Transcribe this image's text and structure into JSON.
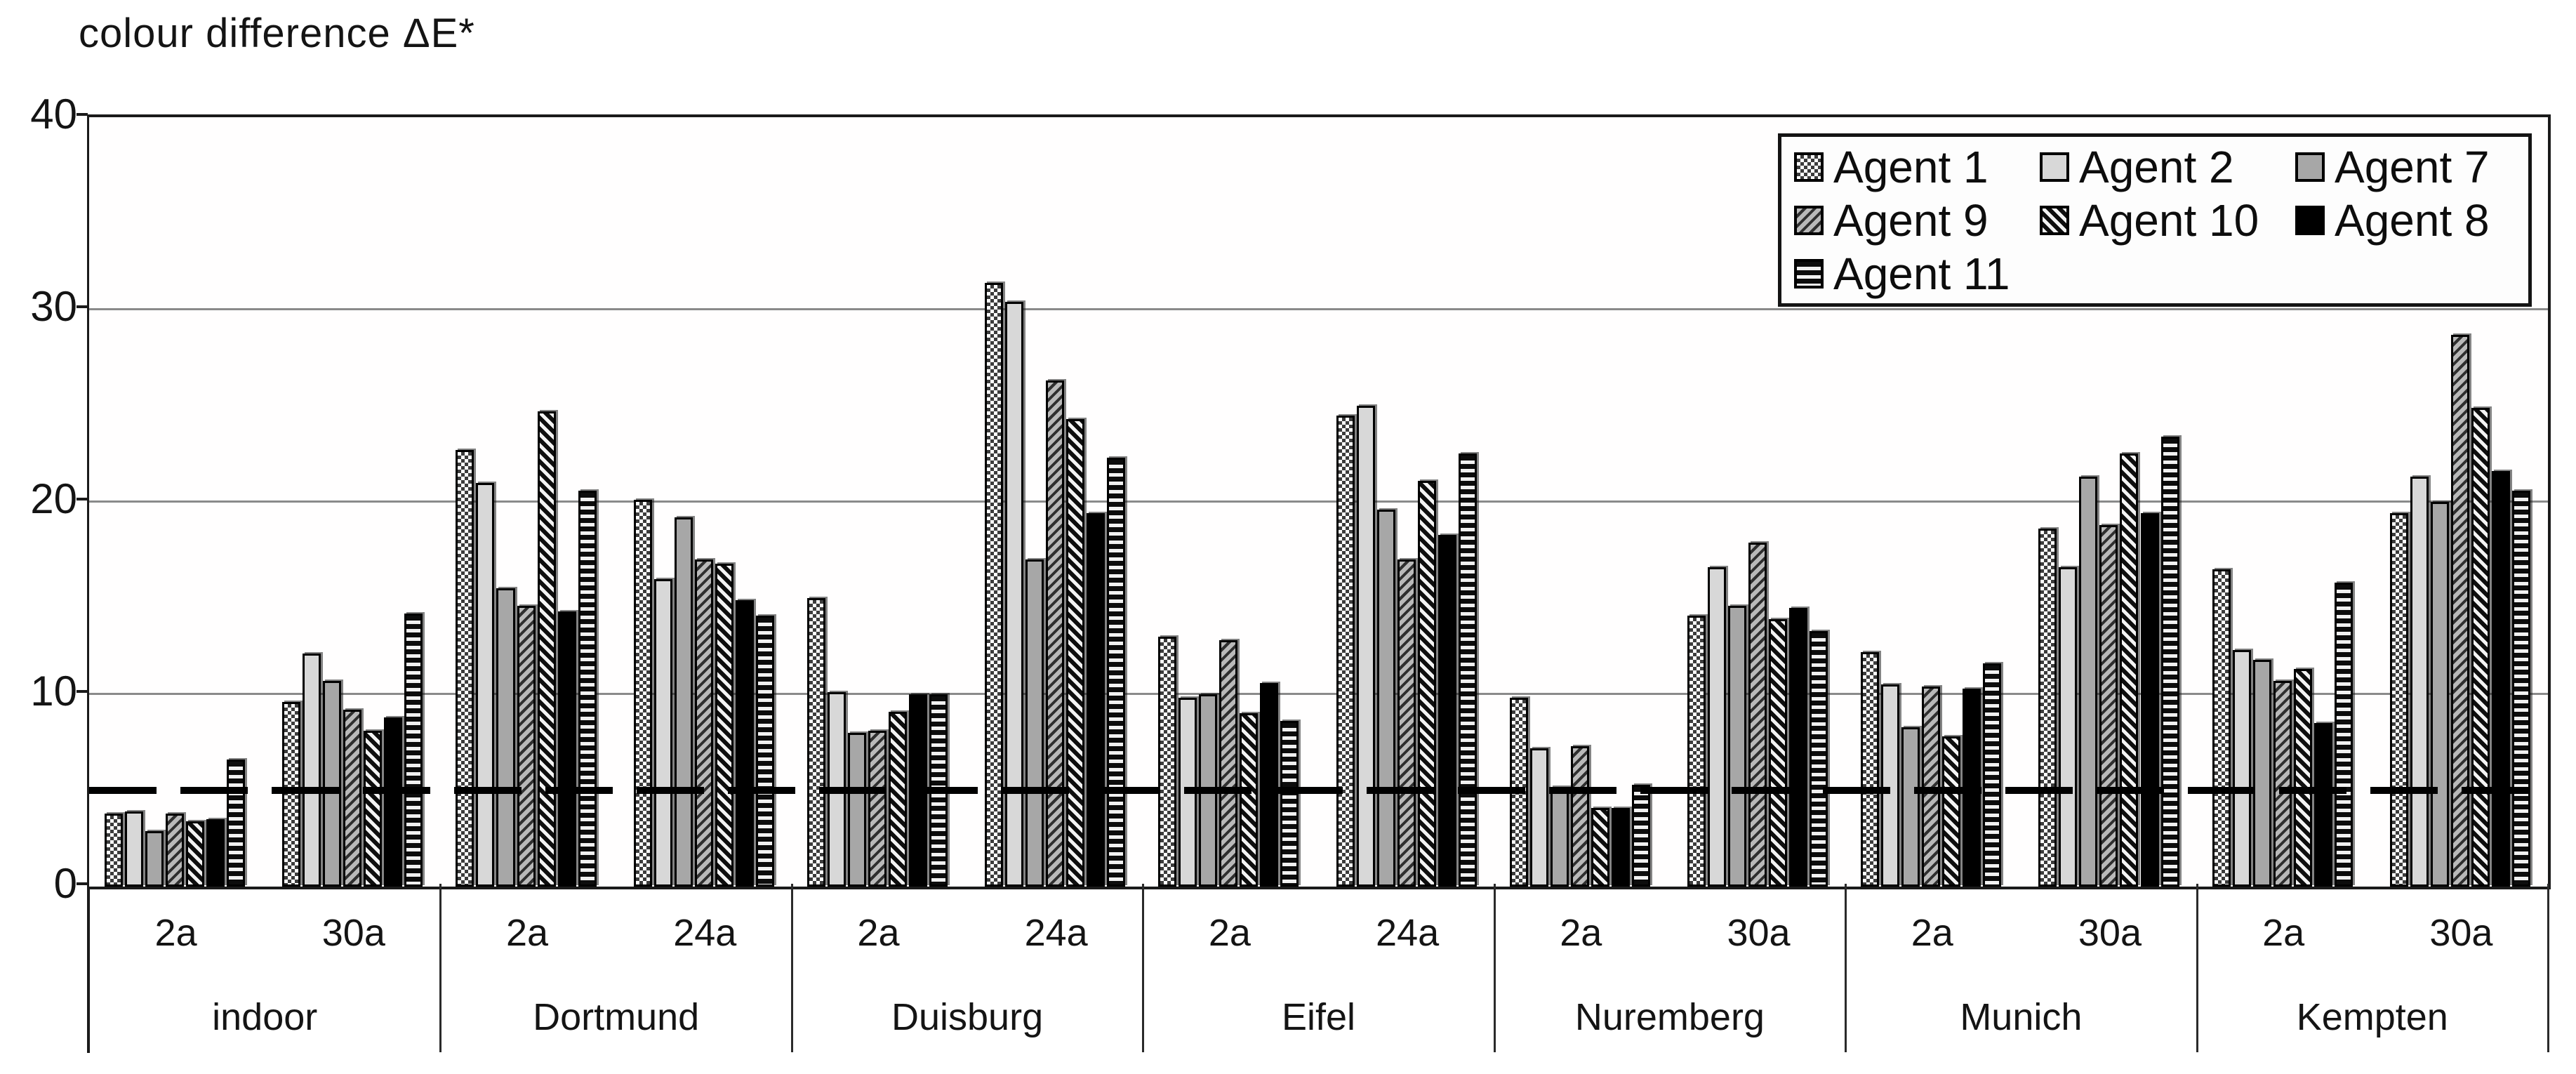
{
  "title": "colour difference ΔE*",
  "axis": {
    "y_ticks": [
      "40",
      "30",
      "20",
      "10",
      "0"
    ],
    "y_max": 40,
    "grid_values": [
      10,
      20,
      30
    ],
    "threshold_value": 5
  },
  "legend": {
    "entries": [
      {
        "label": "Agent 1",
        "pattern": "checker"
      },
      {
        "label": "Agent 2",
        "pattern": "light-gray"
      },
      {
        "label": "Agent 7",
        "pattern": "mid-gray"
      },
      {
        "label": "Agent 9",
        "pattern": "diag-up-gray"
      },
      {
        "label": "Agent 10",
        "pattern": "diag-down-bold"
      },
      {
        "label": "Agent 8",
        "pattern": "solid-black"
      },
      {
        "label": "Agent 11",
        "pattern": "horizontal-stripes"
      }
    ]
  },
  "chart_data": {
    "type": "bar",
    "title": "colour difference ΔE*",
    "ylabel": "colour difference ΔE*",
    "xlabel": "",
    "ylim": [
      0,
      40
    ],
    "grid": true,
    "legend_position": "top-right",
    "reference_line_y": 5,
    "series_names": [
      "Agent 1",
      "Agent 2",
      "Agent 7",
      "Agent 9",
      "Agent 10",
      "Agent 8",
      "Agent 11"
    ],
    "groups": [
      {
        "name": "indoor",
        "subgroups": [
          {
            "label": "2a",
            "values": [
              3.8,
              3.9,
              2.9,
              3.8,
              3.4,
              3.5,
              6.6
            ]
          },
          {
            "label": "30a",
            "values": [
              9.6,
              12.1,
              10.7,
              9.2,
              8.1,
              8.8,
              14.2
            ]
          }
        ]
      },
      {
        "name": "Dortmund",
        "subgroups": [
          {
            "label": "2a",
            "values": [
              22.7,
              21.0,
              15.5,
              14.6,
              24.7,
              14.3,
              20.6
            ]
          },
          {
            "label": "24a",
            "values": [
              20.1,
              16.0,
              19.2,
              17.0,
              16.8,
              14.9,
              14.1
            ]
          }
        ]
      },
      {
        "name": "Duisburg",
        "subgroups": [
          {
            "label": "2a",
            "values": [
              15.0,
              10.1,
              8.0,
              8.1,
              9.1,
              10.0,
              10.0
            ]
          },
          {
            "label": "24a",
            "values": [
              31.4,
              30.4,
              17.0,
              26.3,
              24.3,
              19.4,
              22.3
            ]
          }
        ]
      },
      {
        "name": "Eifel",
        "subgroups": [
          {
            "label": "2a",
            "values": [
              13.0,
              9.8,
              10.0,
              12.8,
              9.0,
              10.6,
              8.6
            ]
          },
          {
            "label": "24a",
            "values": [
              24.5,
              25.0,
              19.6,
              17.0,
              21.1,
              18.3,
              22.5
            ]
          }
        ]
      },
      {
        "name": "Nuremberg",
        "subgroups": [
          {
            "label": "2a",
            "values": [
              9.8,
              7.2,
              5.2,
              7.3,
              4.1,
              4.1,
              5.3
            ]
          },
          {
            "label": "30a",
            "values": [
              14.1,
              16.6,
              14.6,
              17.9,
              13.9,
              14.5,
              13.3
            ]
          }
        ]
      },
      {
        "name": "Munich",
        "subgroups": [
          {
            "label": "2a",
            "values": [
              12.2,
              10.5,
              8.3,
              10.4,
              7.8,
              10.3,
              11.6
            ]
          },
          {
            "label": "30a",
            "values": [
              18.6,
              16.6,
              21.3,
              18.8,
              22.5,
              19.4,
              23.4
            ]
          }
        ]
      },
      {
        "name": "Kempten",
        "subgroups": [
          {
            "label": "2a",
            "values": [
              16.5,
              12.3,
              11.8,
              10.7,
              11.3,
              8.5,
              15.8
            ]
          },
          {
            "label": "30a",
            "values": [
              19.4,
              21.3,
              20.0,
              28.7,
              24.9,
              21.6,
              20.6
            ]
          }
        ]
      }
    ]
  }
}
